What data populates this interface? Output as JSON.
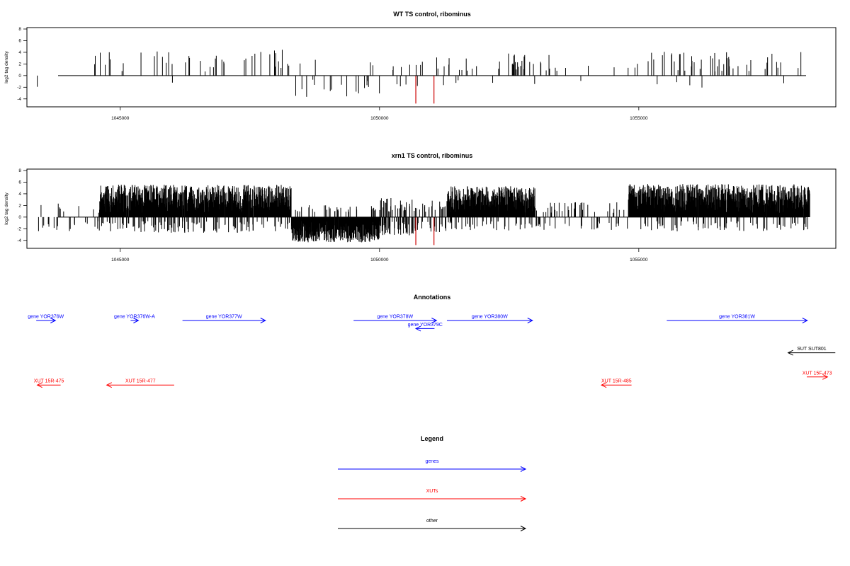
{
  "chart_data": [
    {
      "type": "bar",
      "title": "WT TS control, ribominus",
      "xlabel": "",
      "ylabel": "log2 tag density",
      "xlim": [
        1043200,
        1058800
      ],
      "ylim": [
        -5,
        8
      ],
      "xticks": [
        1045000,
        1050000,
        1055000
      ],
      "yticks": [
        -4,
        -2,
        0,
        2,
        4,
        6,
        8
      ],
      "x_tick_labels": [
        "1045000",
        "1050000",
        "1055000"
      ],
      "y_tick_labels": [
        "-4",
        "-2",
        "0",
        "2",
        "4",
        "6",
        "8"
      ],
      "colors": {
        "default": "#000000",
        "highlight": "#cc0000"
      },
      "profile": {
        "mode": "sparse",
        "seed": 7,
        "segments": [
          {
            "from": 1043400,
            "to": 1043600,
            "density": 0.004,
            "pos": 0.0,
            "amp": 1.0,
            "negamp": 1.0
          },
          {
            "from": 1044500,
            "to": 1047200,
            "density": 0.012,
            "pos": 0.85,
            "amp": 2.6,
            "negamp": 1.5
          },
          {
            "from": 1047200,
            "to": 1048300,
            "density": 0.012,
            "pos": 0.9,
            "amp": 2.8,
            "negamp": 1.0
          },
          {
            "from": 1048300,
            "to": 1050000,
            "density": 0.016,
            "pos": 0.25,
            "amp": 1.5,
            "negamp": 2.5
          },
          {
            "from": 1050000,
            "to": 1050700,
            "density": 0.01,
            "pos": 0.4,
            "amp": 1.2,
            "negamp": 1.5
          },
          {
            "from": 1050700,
            "to": 1053300,
            "density": 0.013,
            "pos": 0.92,
            "amp": 2.3,
            "negamp": 1.0
          },
          {
            "from": 1053300,
            "to": 1055000,
            "density": 0.004,
            "pos": 0.6,
            "amp": 1.0,
            "negamp": 1.0
          },
          {
            "from": 1055000,
            "to": 1058300,
            "density": 0.014,
            "pos": 0.9,
            "amp": 2.6,
            "negamp": 1.3
          }
        ],
        "highlight": [
          {
            "x": 1050700,
            "y": -4.8
          },
          {
            "x": 1051050,
            "y": -4.8
          }
        ]
      }
    },
    {
      "type": "bar",
      "title": "xrn1 TS control, ribominus",
      "xlabel": "",
      "ylabel": "log2 tag density",
      "xlim": [
        1043200,
        1058800
      ],
      "ylim": [
        -5,
        8
      ],
      "xticks": [
        1045000,
        1050000,
        1055000
      ],
      "yticks": [
        -4,
        -2,
        0,
        2,
        4,
        6,
        8
      ],
      "x_tick_labels": [
        "1045000",
        "1050000",
        "1055000"
      ],
      "y_tick_labels": [
        "-4",
        "-2",
        "0",
        "2",
        "4",
        "6",
        "8"
      ],
      "colors": {
        "default": "#000000",
        "highlight": "#cc0000"
      },
      "profile": {
        "mode": "dense",
        "seed": 11,
        "segments": [
          {
            "from": 1043300,
            "to": 1044600,
            "density": 0.02,
            "pos": 0.25,
            "amp": 1.2,
            "negamp": 1.4
          },
          {
            "from": 1044600,
            "to": 1048300,
            "density": 0.35,
            "pos": 0.88,
            "amp": 3.6,
            "negamp": 1.6
          },
          {
            "from": 1048300,
            "to": 1050000,
            "density": 0.28,
            "pos": 0.08,
            "amp": 1.0,
            "negamp": 2.9
          },
          {
            "from": 1050000,
            "to": 1050700,
            "density": 0.12,
            "pos": 0.45,
            "amp": 2.0,
            "negamp": 2.0
          },
          {
            "from": 1050700,
            "to": 1051300,
            "density": 0.05,
            "pos": 0.6,
            "amp": 1.6,
            "negamp": 1.5
          },
          {
            "from": 1051300,
            "to": 1053000,
            "density": 0.3,
            "pos": 0.9,
            "amp": 3.4,
            "negamp": 1.3
          },
          {
            "from": 1053000,
            "to": 1054800,
            "density": 0.03,
            "pos": 0.5,
            "amp": 1.4,
            "negamp": 1.2
          },
          {
            "from": 1054800,
            "to": 1058300,
            "density": 0.33,
            "pos": 0.9,
            "amp": 3.7,
            "negamp": 1.4
          }
        ],
        "highlight": [
          {
            "x": 1050700,
            "y": -4.8
          },
          {
            "x": 1051050,
            "y": -4.8
          }
        ]
      }
    }
  ],
  "annotations": {
    "title": "Annotations",
    "features": [
      {
        "label": "gene YOR376W",
        "from": 1043380,
        "to": 1043750,
        "row": 0,
        "strand": "+",
        "color": "#0000ff"
      },
      {
        "label": "gene YOR376W-A",
        "from": 1045200,
        "to": 1045350,
        "row": 0,
        "strand": "+",
        "color": "#0000ff"
      },
      {
        "label": "gene YOR377W",
        "from": 1046200,
        "to": 1047800,
        "row": 0,
        "strand": "+",
        "color": "#0000ff"
      },
      {
        "label": "gene YOR378W",
        "from": 1049500,
        "to": 1051100,
        "row": 0,
        "strand": "+",
        "color": "#0000ff"
      },
      {
        "label": "gene YOR379C",
        "from": 1050700,
        "to": 1051060,
        "row": 1,
        "strand": "-",
        "color": "#0000ff"
      },
      {
        "label": "gene YOR380W",
        "from": 1051300,
        "to": 1052950,
        "row": 0,
        "strand": "+",
        "color": "#0000ff"
      },
      {
        "label": "gene YOR381W",
        "from": 1055540,
        "to": 1058250,
        "row": 0,
        "strand": "+",
        "color": "#0000ff"
      },
      {
        "label": "SUT SUT801",
        "from": 1057880,
        "to": 1058790,
        "row": 4,
        "strand": "-",
        "color": "#000000"
      },
      {
        "label": "XUT 15R-475",
        "from": 1043400,
        "to": 1043850,
        "row": 8,
        "strand": "-",
        "color": "#ff0000"
      },
      {
        "label": "XUT 15R-477",
        "from": 1044740,
        "to": 1046040,
        "row": 8,
        "strand": "-",
        "color": "#ff0000"
      },
      {
        "label": "XUT 15R-485",
        "from": 1054280,
        "to": 1054860,
        "row": 8,
        "strand": "-",
        "color": "#ff0000"
      },
      {
        "label": "XUT 15F-473",
        "from": 1058240,
        "to": 1058640,
        "row": 7,
        "strand": "+",
        "color": "#ff0000"
      }
    ]
  },
  "legend": {
    "title": "Legend",
    "items": [
      {
        "label": "genes",
        "color": "#0000ff"
      },
      {
        "label": "XUTs",
        "color": "#ff0000"
      },
      {
        "label": "other",
        "color": "#000000"
      }
    ]
  }
}
